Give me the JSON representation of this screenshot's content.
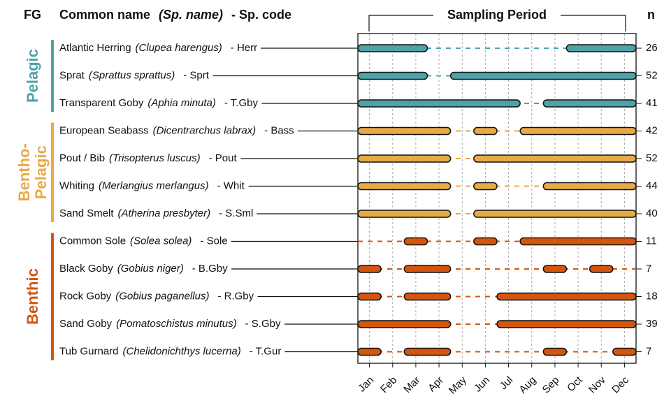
{
  "chart_data": {
    "type": "gantt",
    "header": {
      "fg": "FG",
      "common": "Common name",
      "sci": "(Sp. name)",
      "code": "- Sp. code",
      "period": "Sampling Period",
      "n": "n"
    },
    "xlim": [
      -0.5,
      11.5
    ],
    "xticks": [
      {
        "value": 0,
        "label": "Jan"
      },
      {
        "value": 1,
        "label": "Feb"
      },
      {
        "value": 2,
        "label": "Mar"
      },
      {
        "value": 3,
        "label": "Apr"
      },
      {
        "value": 4,
        "label": "May"
      },
      {
        "value": 5,
        "label": "Jun"
      },
      {
        "value": 6,
        "label": "Jul"
      },
      {
        "value": 7,
        "label": "Aug"
      },
      {
        "value": 8,
        "label": "Sep"
      },
      {
        "value": 9,
        "label": "Oct"
      },
      {
        "value": 10,
        "label": "Nov"
      },
      {
        "value": 11,
        "label": "Dec"
      }
    ],
    "grid": true,
    "groups": [
      {
        "label": [
          "Pelagic"
        ],
        "color": "#4ea3a9",
        "rows": [
          {
            "common": "Atlantic Herring",
            "sci": "(Clupea harengus)",
            "code": "- Herr",
            "n": 26,
            "segments": [
              [
                -0.5,
                2.5
              ],
              [
                8.5,
                11.5
              ]
            ]
          },
          {
            "common": "Sprat",
            "sci": "(Sprattus sprattus)",
            "code": "- Sprt",
            "n": 52,
            "segments": [
              [
                -0.5,
                2.5
              ],
              [
                3.5,
                11.5
              ]
            ]
          },
          {
            "common": "Transparent Goby",
            "sci": "(Aphia minuta)",
            "code": "- T.Gby",
            "n": 41,
            "segments": [
              [
                -0.5,
                6.5
              ],
              [
                7.5,
                11.5
              ]
            ]
          }
        ]
      },
      {
        "label": [
          "Bentho-",
          "Pelagic"
        ],
        "color": "#e8aa45",
        "rows": [
          {
            "common": "European Seabass",
            "sci": "(Dicentrarchus labrax)",
            "code": "- Bass",
            "n": 42,
            "segments": [
              [
                -0.5,
                3.5
              ],
              [
                4.5,
                5.5
              ],
              [
                6.5,
                11.5
              ]
            ]
          },
          {
            "common": "Pout / Bib",
            "sci": "(Trisopterus luscus)",
            "code": "- Pout",
            "n": 52,
            "segments": [
              [
                -0.5,
                3.5
              ],
              [
                4.5,
                11.5
              ]
            ]
          },
          {
            "common": "Whiting",
            "sci": "(Merlangius merlangus)",
            "code": "- Whit",
            "n": 44,
            "segments": [
              [
                -0.5,
                3.5
              ],
              [
                4.5,
                5.5
              ],
              [
                7.5,
                11.5
              ]
            ]
          },
          {
            "common": "Sand Smelt",
            "sci": "(Atherina presbyter)",
            "code": "- S.Sml",
            "n": 40,
            "segments": [
              [
                -0.5,
                3.5
              ],
              [
                4.5,
                11.5
              ]
            ]
          }
        ]
      },
      {
        "label": [
          "Benthic"
        ],
        "color": "#d3560f",
        "rows": [
          {
            "common": "Common Sole",
            "sci": "(Solea solea)",
            "code": "- Sole",
            "n": 11,
            "segments": [
              [
                1.5,
                2.5
              ],
              [
                4.5,
                5.5
              ],
              [
                6.5,
                11.5
              ]
            ]
          },
          {
            "common": "Black Goby",
            "sci": "(Gobius niger)",
            "code": "- B.Gby",
            "n": 7,
            "segments": [
              [
                -0.5,
                0.5
              ],
              [
                1.5,
                3.5
              ],
              [
                7.5,
                8.5
              ],
              [
                9.5,
                10.5
              ]
            ]
          },
          {
            "common": "Rock Goby",
            "sci": "(Gobius paganellus)",
            "code": "- R.Gby",
            "n": 18,
            "segments": [
              [
                -0.5,
                0.5
              ],
              [
                1.5,
                3.5
              ],
              [
                5.5,
                11.5
              ]
            ]
          },
          {
            "common": "Sand Goby",
            "sci": "(Pomatoschistus minutus)",
            "code": "- S.Gby",
            "n": 39,
            "segments": [
              [
                -0.5,
                3.5
              ],
              [
                5.5,
                11.5
              ]
            ]
          },
          {
            "common": "Tub Gurnard",
            "sci": "(Chelidonichthys lucerna)",
            "code": "- T.Gur",
            "n": 7,
            "segments": [
              [
                -0.5,
                0.5
              ],
              [
                1.5,
                3.5
              ],
              [
                7.5,
                8.5
              ],
              [
                10.5,
                11.5
              ]
            ]
          }
        ]
      }
    ]
  }
}
